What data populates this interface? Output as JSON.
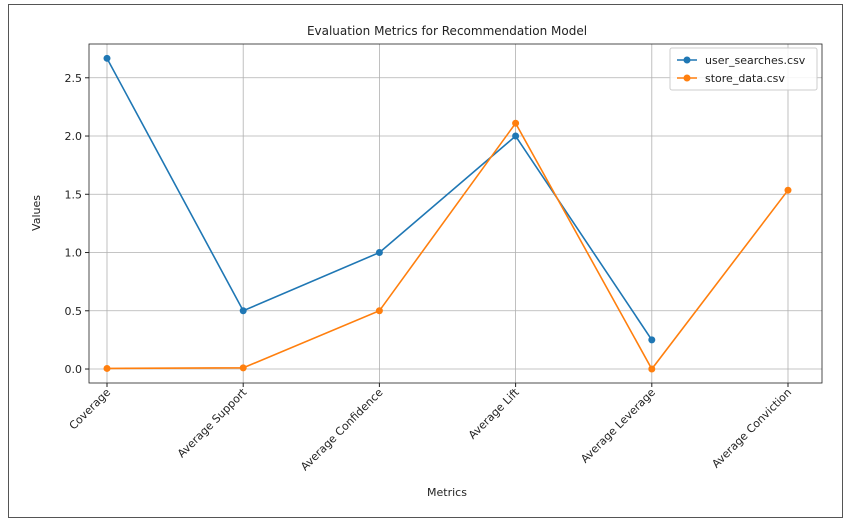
{
  "chart_data": {
    "type": "line",
    "title": "Evaluation Metrics for Recommendation Model",
    "x_label": "Metrics",
    "y_label": "Values",
    "categories": [
      "Coverage",
      "Average Support",
      "Average Confidence",
      "Average Lift",
      "Average Leverage",
      "Average Conviction"
    ],
    "series": [
      {
        "name": "user_searches.csv",
        "color": "#1f77b4",
        "values": [
          2.667,
          0.5,
          1.0,
          2.0,
          0.25,
          null
        ]
      },
      {
        "name": "store_data.csv",
        "color": "#ff7f0e",
        "values": [
          0.005,
          0.01,
          0.5,
          2.11,
          0.0,
          1.535
        ]
      }
    ],
    "ylim": [
      -0.12,
      2.79
    ],
    "yticks": [
      {
        "value": 0,
        "label": "0.0"
      },
      {
        "value": 0.5,
        "label": "0.5"
      },
      {
        "value": 1,
        "label": "1.0"
      },
      {
        "value": 1.5,
        "label": "1.5"
      },
      {
        "value": 2,
        "label": "2.0"
      },
      {
        "value": 2.5,
        "label": "2.5"
      }
    ],
    "grid": true,
    "legend": "upper right"
  }
}
